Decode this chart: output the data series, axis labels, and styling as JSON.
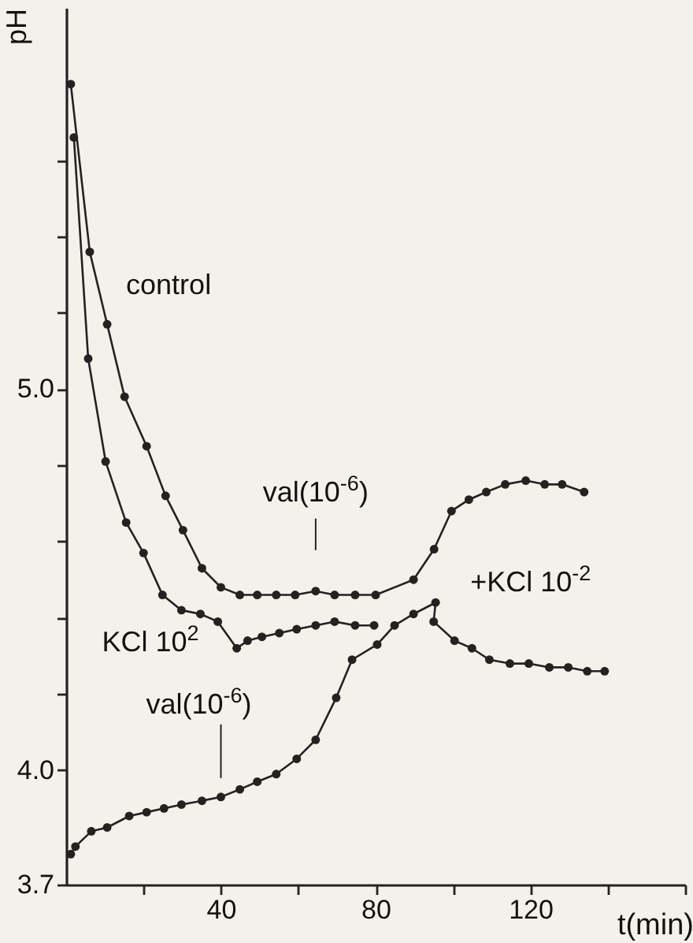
{
  "chart_data": {
    "type": "line",
    "xlabel": "t(min)",
    "ylabel": "pH",
    "xlim": [
      0,
      160
    ],
    "ylim": [
      3.7,
      6.0
    ],
    "xticks": [
      {
        "value": 20,
        "label": null
      },
      40,
      {
        "value": 60,
        "label": null
      },
      80,
      {
        "value": 100,
        "label": null
      },
      120,
      {
        "value": 140,
        "label": null
      },
      {
        "value": 160,
        "label": null
      }
    ],
    "yticks": [
      3.7,
      {
        "value": 4,
        "label": "4.0"
      },
      {
        "value": 4.2,
        "label": null
      },
      {
        "value": 4.4,
        "label": null
      },
      {
        "value": 4.6,
        "label": null
      },
      {
        "value": 4.8,
        "label": null
      },
      {
        "value": 5,
        "label": "5.0"
      },
      {
        "value": 5.2,
        "label": null
      },
      {
        "value": 5.4,
        "label": null
      },
      {
        "value": 5.6,
        "label": null
      }
    ],
    "grid": false,
    "marker": "circle",
    "line_style": "solid",
    "series": [
      {
        "name": "control",
        "color": "#222222",
        "x": [
          1.2,
          6.1,
          10.6,
          15.1,
          20.8,
          25.7,
          30.2,
          35.1,
          40,
          44.9,
          49.4,
          54.3,
          59.2,
          64.5,
          69.4,
          74.7,
          80,
          89.8,
          95.1,
          99.6,
          104.1,
          108.6,
          113.5,
          118.8,
          123.7,
          128.2,
          133.9
        ],
        "values": [
          5.8,
          5.36,
          5.17,
          4.98,
          4.85,
          4.72,
          4.63,
          4.53,
          4.48,
          4.46,
          4.46,
          4.46,
          4.46,
          4.47,
          4.46,
          4.46,
          4.46,
          4.5,
          4.58,
          4.68,
          4.71,
          4.73,
          4.75,
          4.76,
          4.75,
          4.75,
          4.73
        ]
      },
      {
        "color": "#222222",
        "x": [
          2,
          5.7,
          10.2,
          15.5,
          20,
          24.9,
          29.8,
          34.7,
          39.2,
          44.1,
          46.9,
          50.6,
          55.1,
          59.6,
          64.5,
          69.4,
          74.7,
          79.6
        ],
        "values": [
          5.66,
          5.08,
          4.81,
          4.65,
          4.57,
          4.46,
          4.42,
          4.41,
          4.39,
          4.32,
          4.34,
          4.35,
          4.36,
          4.37,
          4.38,
          4.39,
          4.38,
          4.38
        ]
      },
      {
        "color": "#222222",
        "x": [
          1.2,
          2.4,
          6.5,
          10.6,
          16.3,
          20.8,
          25.3,
          29.8,
          35.1,
          40,
          44.9,
          49.4,
          54.3,
          59.6,
          64.5,
          69.8,
          73.9,
          80.4,
          84.9,
          89.8,
          95.5,
          95,
          100.4,
          104.9,
          109.4,
          114.7,
          119.6,
          124.9,
          129.8,
          134.7,
          139.2
        ],
        "values": [
          3.78,
          3.8,
          3.84,
          3.85,
          3.88,
          3.89,
          3.9,
          3.91,
          3.92,
          3.93,
          3.95,
          3.97,
          3.99,
          4.03,
          4.08,
          4.19,
          4.29,
          4.33,
          4.38,
          4.41,
          4.44,
          4.39,
          4.34,
          4.32,
          4.29,
          4.28,
          4.28,
          4.27,
          4.27,
          4.26,
          4.26
        ]
      }
    ],
    "annotations": [
      {
        "text": "val(10$^{-6}$)",
        "x": 64.5,
        "y": 4.47
      },
      {
        "text": "KCl 10$^{2}$",
        "x": 40,
        "y": 4.39
      },
      {
        "text": "val(10$^{-6}$)",
        "x": 40,
        "y": 3.93
      },
      {
        "text": "+KCl 10$^{-2}$",
        "x": 95.5,
        "y": 4.44
      }
    ]
  }
}
